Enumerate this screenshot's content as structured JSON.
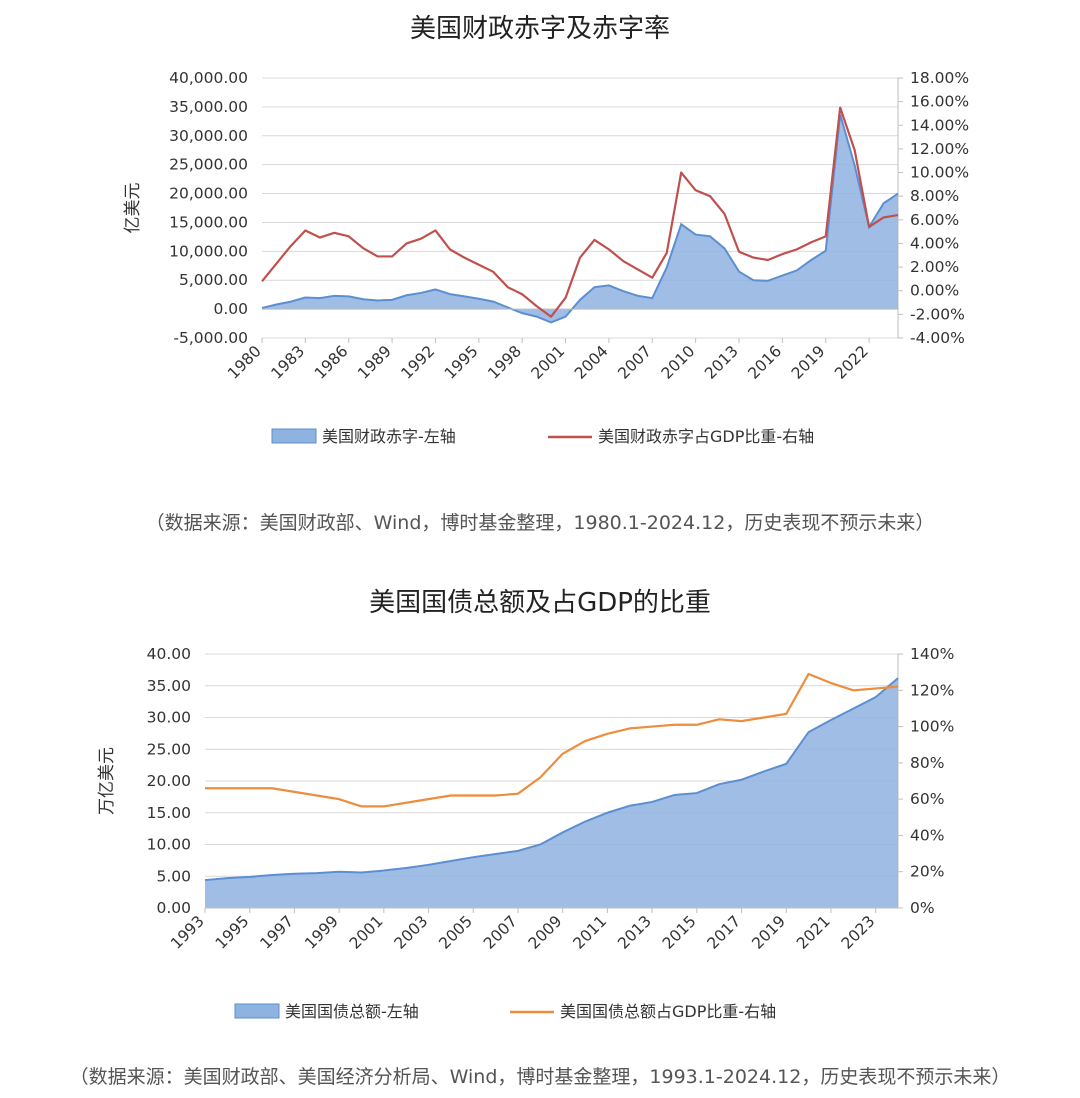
{
  "charts": [
    {
      "title": "美国财政赤字及赤字率",
      "source": "（数据来源：美国财政部、Wind，博时基金整理，1980.1-2024.12，历史表现不预示未来）",
      "chart_data": {
        "type": "area+line",
        "ylabel": "亿美元",
        "left_axis": {
          "min": -5000,
          "max": 40000,
          "step": 5000,
          "ticks": [
            "40,000.00",
            "35,000.00",
            "30,000.00",
            "25,000.00",
            "20,000.00",
            "15,000.00",
            "10,000.00",
            "5,000.00",
            "0.00",
            "-5,000.00"
          ]
        },
        "right_axis": {
          "min": -4,
          "max": 18,
          "step": 2,
          "ticks": [
            "18.00%",
            "16.00%",
            "14.00%",
            "12.00%",
            "10.00%",
            "8.00%",
            "6.00%",
            "4.00%",
            "2.00%",
            "0.00%",
            "-2.00%",
            "-4.00%"
          ]
        },
        "x_years": [
          1980,
          1981,
          1982,
          1983,
          1984,
          1985,
          1986,
          1987,
          1988,
          1989,
          1990,
          1991,
          1992,
          1993,
          1994,
          1995,
          1996,
          1997,
          1998,
          1999,
          2000,
          2001,
          2002,
          2003,
          2004,
          2005,
          2006,
          2007,
          2008,
          2009,
          2010,
          2011,
          2012,
          2013,
          2014,
          2015,
          2016,
          2017,
          2018,
          2019,
          2020,
          2021,
          2022,
          2023,
          2024
        ],
        "x_tick_labels": [
          "1980",
          "1983",
          "1986",
          "1989",
          "1992",
          "1995",
          "1998",
          "2001",
          "2004",
          "2007",
          "2010",
          "2013",
          "2016",
          "2019",
          "2022"
        ],
        "series": [
          {
            "name": "美国财政赤字-左轴",
            "axis": "left",
            "kind": "area",
            "color": "#8fb3e0",
            "values": [
              200,
              800,
              1300,
              2000,
              1900,
              2300,
              2200,
              1700,
              1500,
              1600,
              2400,
              2800,
              3400,
              2600,
              2200,
              1800,
              1300,
              300,
              -700,
              -1300,
              -2300,
              -1300,
              1600,
              3800,
              4100,
              3100,
              2300,
              1900,
              7200,
              14700,
              12900,
              12600,
              10500,
              6500,
              5000,
              4900,
              5800,
              6700,
              8500,
              10100,
              33700,
              24900,
              14200,
              18300,
              20000
            ]
          },
          {
            "name": "美国财政赤字占GDP比重-右轴",
            "axis": "right",
            "kind": "line",
            "color": "#c0504d",
            "values": [
              0.8,
              2.3,
              3.8,
              5.1,
              4.5,
              4.9,
              4.6,
              3.6,
              2.9,
              2.9,
              4.0,
              4.4,
              5.1,
              3.5,
              2.8,
              2.2,
              1.6,
              0.3,
              -0.3,
              -1.3,
              -2.2,
              -0.6,
              2.8,
              4.3,
              3.5,
              2.5,
              1.8,
              1.1,
              3.2,
              10.0,
              8.5,
              8.0,
              6.5,
              3.3,
              2.8,
              2.6,
              3.1,
              3.5,
              4.1,
              4.6,
              15.5,
              11.9,
              5.4,
              6.2,
              6.4
            ]
          }
        ],
        "legend": [
          "美国财政赤字-左轴",
          "美国财政赤字占GDP比重-右轴"
        ]
      }
    },
    {
      "title": "美国国债总额及占GDP的比重",
      "source": "（数据来源：美国财政部、美国经济分析局、Wind，博时基金整理，1993.1-2024.12，历史表现不预示未来）",
      "chart_data": {
        "type": "area+line",
        "ylabel": "万亿美元",
        "left_axis": {
          "min": 0,
          "max": 40,
          "step": 5,
          "ticks": [
            "40.00",
            "35.00",
            "30.00",
            "25.00",
            "20.00",
            "15.00",
            "10.00",
            "5.00",
            "0.00"
          ]
        },
        "right_axis": {
          "min": 0,
          "max": 140,
          "step": 20,
          "ticks": [
            "140%",
            "120%",
            "100%",
            "80%",
            "60%",
            "40%",
            "20%",
            "0%"
          ]
        },
        "x_years": [
          1993,
          1994,
          1995,
          1996,
          1997,
          1998,
          1999,
          2000,
          2001,
          2002,
          2003,
          2004,
          2005,
          2006,
          2007,
          2008,
          2009,
          2010,
          2011,
          2012,
          2013,
          2014,
          2015,
          2016,
          2017,
          2018,
          2019,
          2020,
          2021,
          2022,
          2023,
          2024
        ],
        "x_tick_labels": [
          "1993",
          "1995",
          "1997",
          "1999",
          "2001",
          "2003",
          "2005",
          "2007",
          "2009",
          "2011",
          "2013",
          "2015",
          "2017",
          "2019",
          "2021",
          "2023"
        ],
        "series": [
          {
            "name": "美国国债总额-左轴",
            "axis": "left",
            "kind": "area",
            "color": "#8fb3e0",
            "values": [
              4.4,
              4.7,
              4.9,
              5.2,
              5.4,
              5.5,
              5.7,
              5.6,
              5.9,
              6.3,
              6.8,
              7.4,
              8.0,
              8.5,
              9.0,
              10.0,
              11.9,
              13.6,
              15.0,
              16.1,
              16.7,
              17.8,
              18.1,
              19.5,
              20.2,
              21.5,
              22.7,
              27.7,
              29.6,
              31.4,
              33.2,
              36.2
            ]
          },
          {
            "name": "美国国债总额占GDP比重-右轴",
            "axis": "right",
            "kind": "line",
            "color": "#ed8d3e",
            "values": [
              66,
              66,
              66,
              66,
              64,
              62,
              60,
              56,
              56,
              58,
              60,
              62,
              62,
              62,
              63,
              72,
              85,
              92,
              96,
              99,
              100,
              101,
              101,
              104,
              103,
              105,
              107,
              129,
              124,
              120,
              121,
              122
            ]
          }
        ],
        "legend": [
          "美国国债总额-左轴",
          "美国国债总额占GDP比重-右轴"
        ]
      }
    }
  ]
}
